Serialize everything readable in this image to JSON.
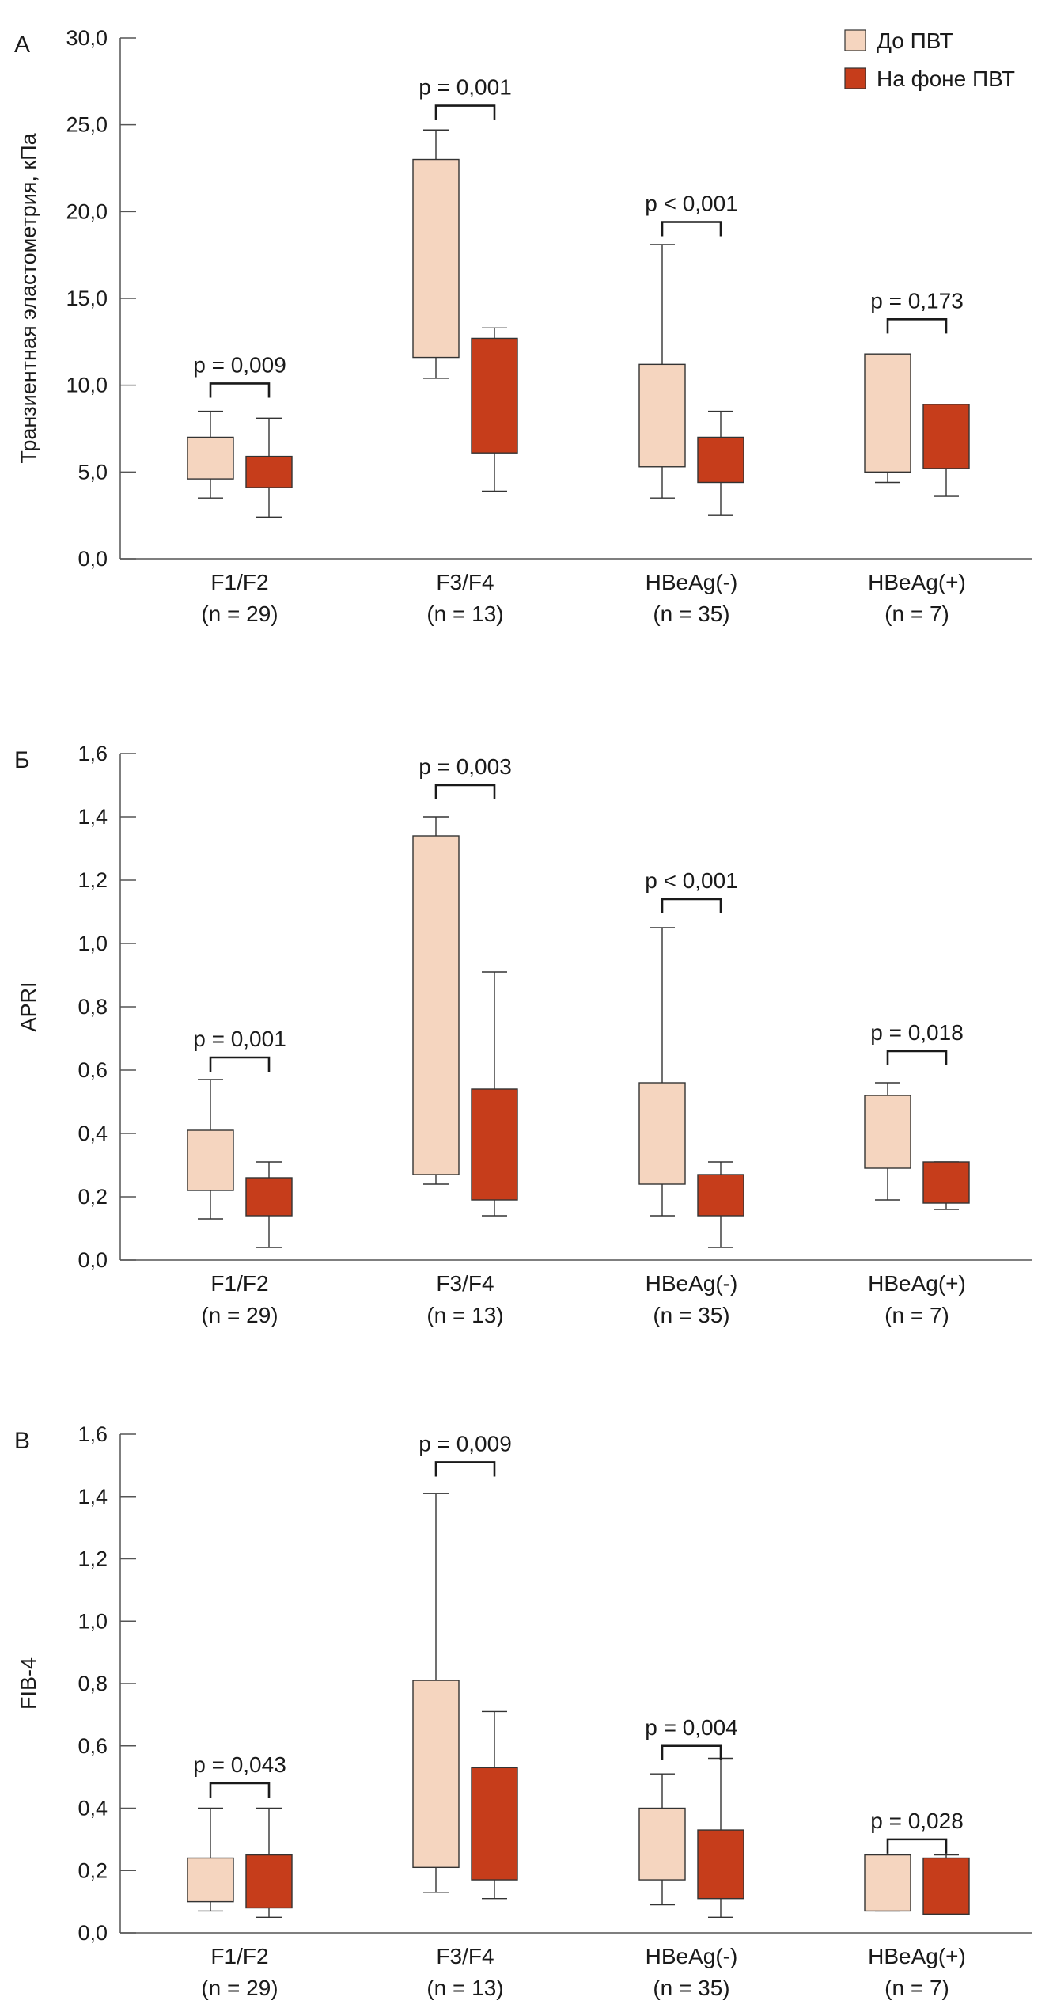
{
  "colors": {
    "before": "#f5d5bf",
    "after": "#c63d1b",
    "stroke": "#333333",
    "axis": "#555555"
  },
  "legend": [
    {
      "label": "До ПВТ",
      "color": "#f5d5bf"
    },
    {
      "label": "На фоне ПВТ",
      "color": "#c63d1b"
    }
  ],
  "chart_data": [
    {
      "type": "box",
      "panel": "А",
      "ylabel": "Транзиентная эластометрия, кПа",
      "ylim": [
        0,
        30
      ],
      "ticks": [
        0,
        5,
        10,
        15,
        20,
        25,
        30
      ],
      "tick_labels": [
        "0,0",
        "5,0",
        "10,0",
        "15,0",
        "20,0",
        "25,0",
        "30,0"
      ],
      "categories": [
        "F1/F2\n(n = 29)",
        "F3/F4\n(n = 13)",
        "HBeAg(-)\n(n = 35)",
        "HBeAg(+)\n(n = 7)"
      ],
      "series": [
        {
          "name": "До ПВТ",
          "boxes": [
            {
              "min": 3.5,
              "q1": 4.6,
              "q3": 7.0,
              "max": 8.5
            },
            {
              "min": 10.4,
              "q1": 11.6,
              "q3": 23.0,
              "max": 24.7
            },
            {
              "min": 3.5,
              "q1": 5.3,
              "q3": 11.2,
              "max": 18.1
            },
            {
              "min": 4.4,
              "q1": 5.0,
              "q3": 11.8,
              "max": 11.8
            }
          ]
        },
        {
          "name": "На фоне ПВТ",
          "boxes": [
            {
              "min": 2.4,
              "q1": 4.1,
              "q3": 5.9,
              "max": 8.1
            },
            {
              "min": 3.9,
              "q1": 6.1,
              "q3": 12.7,
              "max": 13.3
            },
            {
              "min": 2.5,
              "q1": 4.4,
              "q3": 7.0,
              "max": 8.5
            },
            {
              "min": 3.6,
              "q1": 5.2,
              "q3": 8.9,
              "max": 8.9
            }
          ]
        }
      ],
      "pvalues": [
        {
          "label": "p = 0,009",
          "level": 10.1
        },
        {
          "label": "p = 0,001",
          "level": 26.1
        },
        {
          "label": "p < 0,001",
          "level": 19.4
        },
        {
          "label": "p = 0,173",
          "level": 13.8
        }
      ]
    },
    {
      "type": "box",
      "panel": "Б",
      "ylabel": "APRI",
      "ylim": [
        0,
        1.6
      ],
      "ticks": [
        0,
        0.2,
        0.4,
        0.6,
        0.8,
        1.0,
        1.2,
        1.4,
        1.6
      ],
      "tick_labels": [
        "0,0",
        "0,2",
        "0,4",
        "0,6",
        "0,8",
        "1,0",
        "1,2",
        "1,4",
        "1,6"
      ],
      "categories": [
        "F1/F2\n(n = 29)",
        "F3/F4\n(n = 13)",
        "HBeAg(-)\n(n = 35)",
        "HBeAg(+)\n(n = 7)"
      ],
      "series": [
        {
          "name": "До ПВТ",
          "boxes": [
            {
              "min": 0.13,
              "q1": 0.22,
              "q3": 0.41,
              "max": 0.57
            },
            {
              "min": 0.24,
              "q1": 0.27,
              "q3": 1.34,
              "max": 1.4
            },
            {
              "min": 0.14,
              "q1": 0.24,
              "q3": 0.56,
              "max": 1.05
            },
            {
              "min": 0.19,
              "q1": 0.29,
              "q3": 0.52,
              "max": 0.56
            }
          ]
        },
        {
          "name": "На фоне ПВТ",
          "boxes": [
            {
              "min": 0.04,
              "q1": 0.14,
              "q3": 0.26,
              "max": 0.31
            },
            {
              "min": 0.14,
              "q1": 0.19,
              "q3": 0.54,
              "max": 0.91
            },
            {
              "min": 0.04,
              "q1": 0.14,
              "q3": 0.27,
              "max": 0.31
            },
            {
              "min": 0.16,
              "q1": 0.18,
              "q3": 0.31,
              "max": 0.31
            }
          ]
        }
      ],
      "pvalues": [
        {
          "label": "p = 0,001",
          "level": 0.64
        },
        {
          "label": "p = 0,003",
          "level": 1.5
        },
        {
          "label": "p < 0,001",
          "level": 1.14
        },
        {
          "label": "p = 0,018",
          "level": 0.66
        }
      ]
    },
    {
      "type": "box",
      "panel": "В",
      "ylabel": "FIB-4",
      "ylim": [
        0,
        1.6
      ],
      "ticks": [
        0,
        0.2,
        0.4,
        0.6,
        0.8,
        1.0,
        1.2,
        1.4,
        1.6
      ],
      "tick_labels": [
        "0,0",
        "0,2",
        "0,4",
        "0,6",
        "0,8",
        "1,0",
        "1,2",
        "1,4",
        "1,6"
      ],
      "categories": [
        "F1/F2\n(n = 29)",
        "F3/F4\n(n = 13)",
        "HBeAg(-)\n(n = 35)",
        "HBeAg(+)\n(n = 7)"
      ],
      "series": [
        {
          "name": "До ПВТ",
          "boxes": [
            {
              "min": 0.07,
              "q1": 0.1,
              "q3": 0.24,
              "max": 0.4
            },
            {
              "min": 0.13,
              "q1": 0.21,
              "q3": 0.81,
              "max": 1.41
            },
            {
              "min": 0.09,
              "q1": 0.17,
              "q3": 0.4,
              "max": 0.51
            },
            {
              "min": 0.07,
              "q1": 0.07,
              "q3": 0.25,
              "max": 0.25
            }
          ]
        },
        {
          "name": "На фоне ПВТ",
          "boxes": [
            {
              "min": 0.05,
              "q1": 0.08,
              "q3": 0.25,
              "max": 0.4
            },
            {
              "min": 0.11,
              "q1": 0.17,
              "q3": 0.53,
              "max": 0.71
            },
            {
              "min": 0.05,
              "q1": 0.11,
              "q3": 0.33,
              "max": 0.56
            },
            {
              "min": 0.06,
              "q1": 0.06,
              "q3": 0.24,
              "max": 0.25
            }
          ]
        }
      ],
      "pvalues": [
        {
          "label": "p = 0,043",
          "level": 0.48
        },
        {
          "label": "p = 0,009",
          "level": 1.51
        },
        {
          "label": "p = 0,004",
          "level": 0.6
        },
        {
          "label": "p = 0,028",
          "level": 0.3
        }
      ]
    }
  ]
}
